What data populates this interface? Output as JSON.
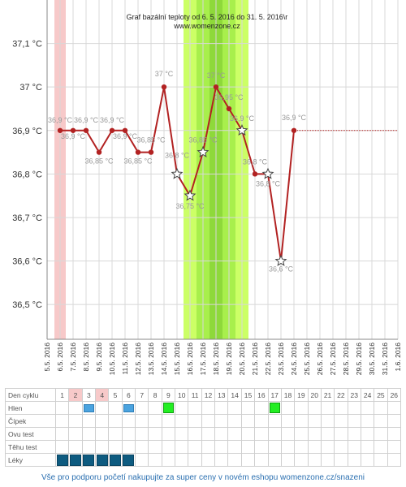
{
  "title": "Graf bazální teploty od 6. 5. 2016 do 31. 5. 2016\\r",
  "subtitle": "www.womenzone.cz",
  "footer": "Vše pro podporu početí nakupujte za super ceny v novém eshopu womenzone.cz/snazeni",
  "colors": {
    "line": "#b22222",
    "ovulation_light": "#ccff66",
    "ovulation_mid": "#a8ef4c",
    "ovulation_dark": "#8ed93a",
    "menses": "#f7c9c9",
    "value_label": "#999999",
    "dotted_extension": "#b22222"
  },
  "chart_data": {
    "type": "line",
    "title": "Graf bazální teploty od 6. 5. 2016 do 31. 5. 2016\\r",
    "y_ticks": [
      "37,1 °C",
      "37 °C",
      "36,9 °C",
      "36,8 °C",
      "36,7 °C",
      "36,6 °C",
      "36,5 °C"
    ],
    "y_tick_values": [
      37.1,
      37.0,
      36.9,
      36.8,
      36.7,
      36.6,
      36.5
    ],
    "ylim": [
      36.42,
      37.2
    ],
    "x_ticks": [
      "5.5. 2016",
      "6.5. 2016",
      "7.5. 2016",
      "8.5. 2016",
      "9.5. 2016",
      "10.5. 2016",
      "11.5. 2016",
      "12.5. 2016",
      "13.5. 2016",
      "14.5. 2016",
      "15.5. 2016",
      "16.5. 2016",
      "17.5. 2016",
      "18.5. 2016",
      "19.5. 2016",
      "20.5. 2016",
      "21.5. 2016",
      "22.5. 2016",
      "23.5. 2016",
      "24.5. 2016",
      "25.5. 2016",
      "26.5. 2016",
      "27.5. 2016",
      "28.5. 2016",
      "29.5. 2016",
      "30.5. 2016",
      "31.5. 2016",
      "1.6. 2016"
    ],
    "series": [
      {
        "x": [
          "6.5. 2016",
          "7.5. 2016",
          "8.5. 2016",
          "9.5. 2016",
          "10.5. 2016",
          "11.5. 2016",
          "12.5. 2016",
          "13.5. 2016",
          "14.5. 2016",
          "15.5. 2016",
          "16.5. 2016",
          "17.5. 2016",
          "18.5. 2016",
          "19.5. 2016",
          "20.5. 2016",
          "21.5. 2016",
          "22.5. 2016",
          "23.5. 2016",
          "24.5. 2016"
        ],
        "values": [
          36.9,
          36.9,
          36.9,
          36.85,
          36.9,
          36.9,
          36.85,
          36.85,
          37.0,
          36.8,
          36.75,
          36.85,
          37.0,
          36.95,
          36.9,
          36.8,
          36.8,
          36.6,
          36.9
        ],
        "value_labels": [
          "36,9 °C",
          "36,9 °C",
          "36,9 °C",
          "36,85 °C",
          "36,9 °C",
          "36,9 °C",
          "36,85 °C",
          "36,85 °C",
          "37 °C",
          "36,8 °C",
          "36,75 °C",
          "36,85 °C",
          "37 °C",
          "36,95 °C",
          "36,9 °C",
          "36,8 °C",
          "36,8 °C",
          "36,6 °C",
          "36,9 °C"
        ],
        "star_marker_days": [
          9,
          10,
          11,
          14,
          16,
          17,
          19
        ]
      }
    ],
    "extension": {
      "from": "24.5. 2016",
      "to": "31.5. 2016",
      "value": 36.9,
      "style": "dotted"
    },
    "menses_band": {
      "from": "6.5. 2016",
      "to": "6.5. 2016"
    },
    "ovulation_band": {
      "from": "16.5. 2016",
      "to": "20.5. 2016",
      "peak": "18.5. 2016"
    }
  },
  "table": {
    "rows": [
      {
        "label": "Den cyklu",
        "cells": [
          "1",
          "2",
          "3",
          "4",
          "5",
          "6",
          "7",
          "8",
          "9",
          "10",
          "11",
          "12",
          "13",
          "14",
          "15",
          "16",
          "17",
          "18",
          "19",
          "20",
          "21",
          "22",
          "23",
          "24",
          "25",
          "26"
        ],
        "pink": [
          2,
          4
        ]
      },
      {
        "label": "Hlen",
        "marks": {
          "3": "blue",
          "6": "blue",
          "9": "green",
          "17": "green"
        }
      },
      {
        "label": "Čípek",
        "marks": {}
      },
      {
        "label": "Ovu test",
        "marks": {}
      },
      {
        "label": "Těhu test",
        "marks": {}
      },
      {
        "label": "Léky",
        "marks": {
          "1": "med",
          "2": "med",
          "3": "med",
          "4": "med",
          "5": "med",
          "6": "med"
        }
      }
    ]
  }
}
